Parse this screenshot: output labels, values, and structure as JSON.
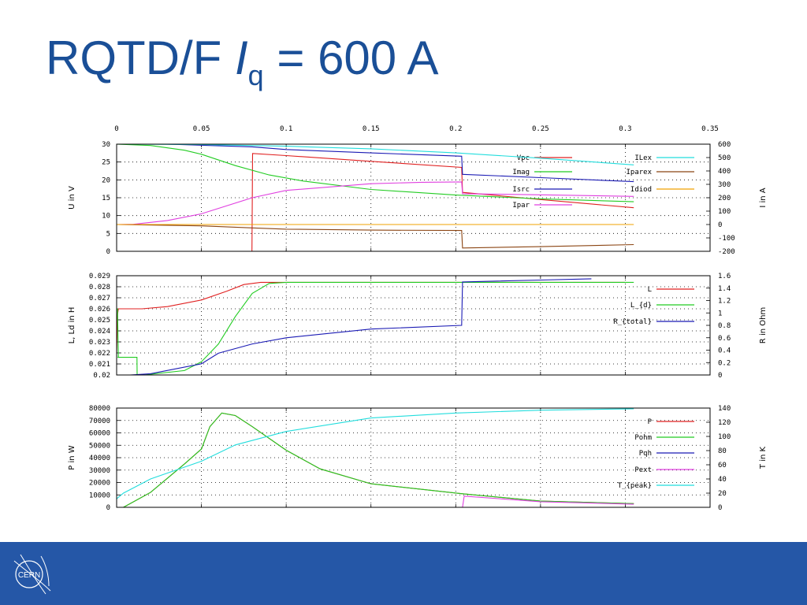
{
  "title": {
    "prefix": "RQTD/F ",
    "symbol": "I",
    "subscript": "q",
    "suffix": " = 600 A"
  },
  "footer": {
    "logo_text": "CERN",
    "color": "#2557a7"
  },
  "chart_data": [
    {
      "type": "line",
      "x_ticks": [
        "0",
        "0.05",
        "0.1",
        "0.15",
        "0.2",
        "0.25",
        "0.3",
        "0.35"
      ],
      "xlim": [
        0,
        0.35
      ],
      "ylabel": "U in V",
      "y_ticks": [
        "0",
        "5",
        "10",
        "15",
        "20",
        "25",
        "30"
      ],
      "ylim": [
        0,
        30
      ],
      "y2label": "I in A",
      "y2_ticks": [
        "-200",
        "-100",
        "0",
        "100",
        "200",
        "300",
        "400",
        "500",
        "600"
      ],
      "y2lim": [
        -200,
        600
      ],
      "grid": true,
      "legend_position": "top-right",
      "series": [
        {
          "name": "Vpc",
          "color": "#e02020",
          "axis": "y",
          "x": [
            0,
            0.0798,
            0.0802,
            0.1,
            0.15,
            0.2035,
            0.204,
            0.25,
            0.305
          ],
          "y": [
            0,
            0,
            27.4,
            26.8,
            25.2,
            23.5,
            16.5,
            14.5,
            12.2
          ]
        },
        {
          "name": "Imag",
          "color": "#22cc22",
          "axis": "y2",
          "x": [
            0,
            0.02,
            0.04,
            0.05,
            0.07,
            0.09,
            0.11,
            0.15,
            0.2,
            0.25,
            0.305
          ],
          "y": [
            600,
            590,
            555,
            525,
            440,
            370,
            325,
            262,
            220,
            192,
            170
          ]
        },
        {
          "name": "Isrc",
          "color": "#1a1ab4",
          "axis": "y2",
          "x": [
            0,
            0.03,
            0.08,
            0.1,
            0.15,
            0.2035,
            0.204,
            0.25,
            0.305
          ],
          "y": [
            600,
            600,
            580,
            560,
            535,
            510,
            375,
            350,
            320
          ]
        },
        {
          "name": "Ipar",
          "color": "#e040e0",
          "axis": "y2",
          "x": [
            0,
            0.01,
            0.03,
            0.05,
            0.08,
            0.1,
            0.15,
            0.18,
            0.2035,
            0.204,
            0.25,
            0.305
          ],
          "y": [
            0,
            2,
            30,
            80,
            200,
            255,
            305,
            315,
            318,
            230,
            222,
            210
          ]
        },
        {
          "name": "ILex",
          "color": "#22dddd",
          "axis": "y2",
          "x": [
            0,
            0.05,
            0.1,
            0.15,
            0.2,
            0.25,
            0.305
          ],
          "y": [
            600,
            597,
            585,
            565,
            535,
            495,
            445
          ]
        },
        {
          "name": "Iparex",
          "color": "#8b4513",
          "axis": "y2",
          "x": [
            0,
            0.05,
            0.08,
            0.1,
            0.15,
            0.2035,
            0.204,
            0.25,
            0.305
          ],
          "y": [
            0,
            -10,
            -25,
            -35,
            -42,
            -45,
            -175,
            -165,
            -150
          ]
        },
        {
          "name": "Idiod",
          "color": "#f0a000",
          "axis": "y2",
          "x": [
            0,
            0.305
          ],
          "y": [
            0,
            0
          ]
        }
      ]
    },
    {
      "type": "line",
      "x_ticks": [],
      "xlim": [
        0,
        0.35
      ],
      "ylabel": "L, Ld in H",
      "y_ticks": [
        "0.02",
        "0.021",
        "0.022",
        "0.023",
        "0.024",
        "0.025",
        "0.026",
        "0.027",
        "0.028",
        "0.029"
      ],
      "ylim": [
        0.02,
        0.029
      ],
      "y2label": "R in Ohm",
      "y2_ticks": [
        "0",
        "0.2",
        "0.4",
        "0.6",
        "0.8",
        "1",
        "1.2",
        "1.4",
        "1.6"
      ],
      "y2lim": [
        0,
        1.6
      ],
      "grid": true,
      "legend_position": "top-right",
      "series": [
        {
          "name": "L",
          "color": "#e02020",
          "axis": "y",
          "x": [
            0,
            0.0005,
            0.001,
            0.015,
            0.03,
            0.05,
            0.065,
            0.075,
            0.085,
            0.3
          ],
          "y": [
            0.022,
            0.0255,
            0.026,
            0.026,
            0.0262,
            0.0268,
            0.0276,
            0.0282,
            0.0284,
            0.0284
          ]
        },
        {
          "name": "L_{d}",
          "color": "#22cc22",
          "axis": "y",
          "x": [
            0,
            0.0005,
            0.001,
            0.0005,
            0.012,
            0.0121,
            0.016,
            0.04,
            0.05,
            0.06,
            0.07,
            0.08,
            0.09,
            0.1,
            0.305
          ],
          "y": [
            0.026,
            0.026,
            0.0216,
            0.0216,
            0.0216,
            0.02,
            0.02,
            0.0204,
            0.0212,
            0.0228,
            0.0253,
            0.0274,
            0.0283,
            0.0284,
            0.0284
          ]
        },
        {
          "name": "R_{total}",
          "color": "#1a1ab4",
          "axis": "y2",
          "x": [
            0.008,
            0.02,
            0.05,
            0.06,
            0.08,
            0.1,
            0.15,
            0.2035,
            0.204,
            0.25,
            0.28
          ],
          "y": [
            0,
            0.02,
            0.18,
            0.35,
            0.5,
            0.6,
            0.74,
            0.8,
            1.5,
            1.53,
            1.55
          ]
        }
      ]
    },
    {
      "type": "line",
      "x_ticks": [],
      "xlim": [
        0,
        0.35
      ],
      "ylabel": "P in W",
      "y_ticks": [
        "0",
        "10000",
        "20000",
        "30000",
        "40000",
        "50000",
        "60000",
        "70000",
        "80000"
      ],
      "ylim": [
        0,
        80000
      ],
      "y2label": "T in K",
      "y2_ticks": [
        "0",
        "20",
        "40",
        "60",
        "80",
        "100",
        "120",
        "140"
      ],
      "y2lim": [
        0,
        140
      ],
      "grid": true,
      "legend_position": "top-right",
      "series": [
        {
          "name": "P",
          "color": "#e02020",
          "axis": "y",
          "x": [
            0.004,
            0.02,
            0.04,
            0.05,
            0.055,
            0.062,
            0.07,
            0.08,
            0.1,
            0.12,
            0.15,
            0.2035,
            0.25,
            0.305
          ],
          "y": [
            0,
            12000,
            35000,
            47000,
            65000,
            76000,
            74000,
            65000,
            46000,
            31000,
            19000,
            11000,
            5000,
            3000
          ]
        },
        {
          "name": "Pohm",
          "color": "#22cc22",
          "axis": "y",
          "x": [
            0.004,
            0.02,
            0.04,
            0.05,
            0.055,
            0.062,
            0.07,
            0.08,
            0.1,
            0.12,
            0.15,
            0.2035,
            0.25,
            0.305
          ],
          "y": [
            0,
            12000,
            35000,
            47000,
            65000,
            76000,
            74000,
            65000,
            46000,
            31000,
            19000,
            11000,
            5000,
            3000
          ]
        },
        {
          "name": "Pqh",
          "color": "#1a1ab4",
          "axis": "y",
          "x": [
            0,
            0.305
          ],
          "y": [
            0,
            0
          ]
        },
        {
          "name": "Pext",
          "color": "#e040e0",
          "axis": "y",
          "x": [
            0.204,
            0.205,
            0.25,
            0.305
          ],
          "y": [
            0,
            9000,
            4500,
            2500
          ]
        },
        {
          "name": "T_{peak}",
          "color": "#22dddd",
          "axis": "y2",
          "x": [
            0,
            0.004,
            0.02,
            0.05,
            0.07,
            0.1,
            0.15,
            0.2,
            0.25,
            0.305
          ],
          "y": [
            12,
            20,
            40,
            65,
            88,
            107,
            126,
            133,
            137,
            139
          ]
        }
      ]
    }
  ]
}
